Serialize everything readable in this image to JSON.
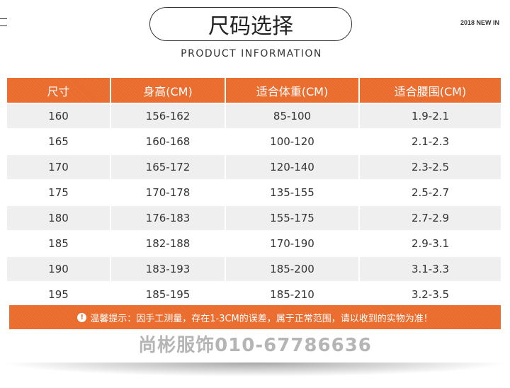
{
  "header": {
    "title": "尺码选择",
    "subtitle": "PRODUCT INFORMATION",
    "tag": "2018 NEW IN"
  },
  "table": {
    "columns": [
      "尺寸",
      "身高(CM)",
      "适合体重(CM)",
      "适合腰围(CM)"
    ],
    "rows": [
      [
        "160",
        "156-162",
        "85-100",
        "1.9-2.1"
      ],
      [
        "165",
        "160-168",
        "100-120",
        "2.1-2.3"
      ],
      [
        "170",
        "165-172",
        "120-140",
        "2.3-2.5"
      ],
      [
        "175",
        "170-178",
        "135-155",
        "2.5-2.7"
      ],
      [
        "180",
        "176-183",
        "155-175",
        "2.7-2.9"
      ],
      [
        "185",
        "182-188",
        "170-190",
        "2.9-3.1"
      ],
      [
        "190",
        "183-193",
        "185-200",
        "3.1-3.3"
      ],
      [
        "195",
        "185-195",
        "185-210",
        "3.2-3.5"
      ]
    ]
  },
  "notice": {
    "icon": "exclamation-circle-icon",
    "text": "温馨提示：因手工测量，存在1-3CM的误差，属于正常范围，请以收到的实物为准！"
  },
  "watermark": "尚彬服饰010-67786636",
  "colors": {
    "accent": "#ea6b2c",
    "row_alt": "#efefef"
  }
}
